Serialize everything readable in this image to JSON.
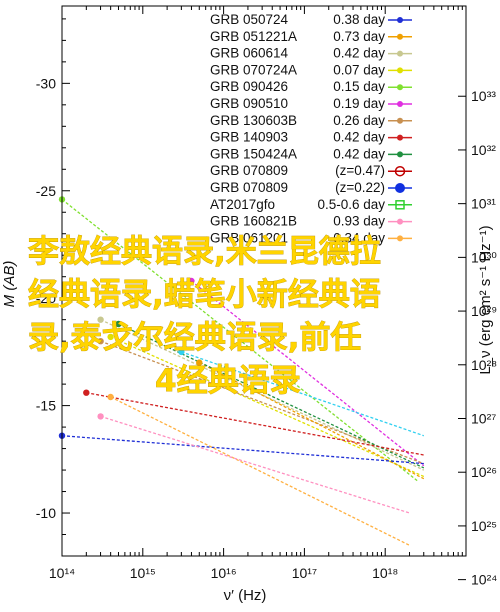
{
  "chart_data": {
    "type": "line",
    "xlabel": "ν′ (Hz)",
    "ylabel": "M (AB)",
    "ylabel_right": "L_ν (erg cm² s⁻¹ Hz⁻¹)",
    "xscale": "log",
    "xlim": [
      100000000000000.0,
      1e+19
    ],
    "ylim": [
      -8,
      -33.6
    ],
    "x_tick_labels": [
      "10¹⁴",
      "10¹⁵",
      "10¹⁶",
      "10¹⁷",
      "10¹⁸"
    ],
    "y_tick_labels": [
      "-30",
      "-25",
      "-20",
      "-15",
      "-10"
    ],
    "y_ticks": [
      -30,
      -25,
      -20,
      -15,
      -10
    ],
    "right_tick_labels": [
      "10³³",
      "10³²",
      "10³¹",
      "10³⁰",
      "10²⁹",
      "10²⁸",
      "10²⁷",
      "10²⁶",
      "10²⁵",
      "10²⁴"
    ],
    "right_ticks_mag": [
      -29.4,
      -26.9,
      -24.4,
      -21.9,
      -19.4,
      -16.9,
      -14.4,
      -11.9,
      -9.4,
      -6.9
    ],
    "legend_position": "top-right",
    "legend": [
      {
        "label": "GRB 050724",
        "value": "0.38 day",
        "color": "#1f2fd6",
        "marker": "dot"
      },
      {
        "label": "GRB 051221A",
        "value": "0.73 day",
        "color": "#f0a000",
        "marker": "dot"
      },
      {
        "label": "GRB 060614",
        "value": "0.42 day",
        "color": "#c8c890",
        "marker": "dot"
      },
      {
        "label": "GRB 070724A",
        "value": "0.07 day",
        "color": "#e0e000",
        "marker": "dot"
      },
      {
        "label": "GRB 090426",
        "value": "0.15 day",
        "color": "#80e030",
        "marker": "dot"
      },
      {
        "label": "GRB 090510",
        "value": "0.19 day",
        "color": "#e030e0",
        "marker": "dot"
      },
      {
        "label": "GRB 130603B",
        "value": "0.26 day",
        "color": "#c89050",
        "marker": "dot"
      },
      {
        "label": "GRB 140903",
        "value": "0.42 day",
        "color": "#d02020",
        "marker": "dot"
      },
      {
        "label": "GRB 150424A",
        "value": "0.42 day",
        "color": "#209040",
        "marker": "dot"
      },
      {
        "label": "GRB 070809",
        "value": "(z=0.47)",
        "color": "#c00000",
        "marker": "circle-open"
      },
      {
        "label": "GRB 070809",
        "value": "(z=0.22)",
        "color": "#1030e0",
        "marker": "circle-filled"
      },
      {
        "label": "AT2017gfo",
        "value": "0.5-0.6 day",
        "color": "#30d030",
        "marker": "square"
      },
      {
        "label": "GRB 160821B",
        "value": "0.93 day",
        "color": "#ff90c0",
        "marker": "dot"
      },
      {
        "label": "GRB 061201",
        "value": "0.34 day",
        "color": "#ffb040",
        "marker": "dot"
      }
    ],
    "series": [
      {
        "color": "#80e030",
        "points": [
          [
            100000000000000.0,
            -24.6
          ],
          [
            2.5e+18,
            -11.5
          ]
        ]
      },
      {
        "color": "#e030e0",
        "points": [
          [
            4000000000000000.0,
            -20.8
          ],
          [
            3e+18,
            -12.2
          ]
        ]
      },
      {
        "color": "#c8c890",
        "points": [
          [
            300000000000000.0,
            -19.0
          ],
          [
            3e+18,
            -12.0
          ]
        ]
      },
      {
        "color": "#e0e000",
        "points": [
          [
            400000000000000.0,
            -18.2
          ],
          [
            3e+18,
            -11.7
          ]
        ]
      },
      {
        "color": "#c89050",
        "points": [
          [
            300000000000000.0,
            -18.0
          ],
          [
            3e+18,
            -12.3
          ]
        ]
      },
      {
        "color": "#30d0f0",
        "points": [
          [
            3000000000000000.0,
            -17.5
          ],
          [
            3e+18,
            -13.6
          ]
        ]
      },
      {
        "color": "#f0a000",
        "points": [
          [
            5000000000000000.0,
            -17.0
          ],
          [
            3e+18,
            -11.6
          ]
        ]
      },
      {
        "color": "#209040",
        "points": [
          [
            500000000000000.0,
            -18.8
          ],
          [
            3e+18,
            -12.1
          ]
        ]
      },
      {
        "color": "#d02020",
        "points": [
          [
            200000000000000.0,
            -15.6
          ],
          [
            3e+18,
            -12.7
          ]
        ]
      },
      {
        "color": "#1f2fd6",
        "points": [
          [
            100000000000000.0,
            -13.6
          ],
          [
            3e+18,
            -12.3
          ]
        ]
      },
      {
        "color": "#ffb040",
        "points": [
          [
            400000000000000.0,
            -15.4
          ],
          [
            2e+18,
            -8.5
          ]
        ]
      },
      {
        "color": "#ff90c0",
        "points": [
          [
            300000000000000.0,
            -14.5
          ],
          [
            2e+18,
            -10.0
          ]
        ]
      }
    ],
    "overlay_text": [
      "李敖经典语录,米兰昆德拉",
      "经典语录,蜡笔小新经典语",
      "录,泰戈尔经典语录,前任",
      "4经典语录"
    ]
  }
}
